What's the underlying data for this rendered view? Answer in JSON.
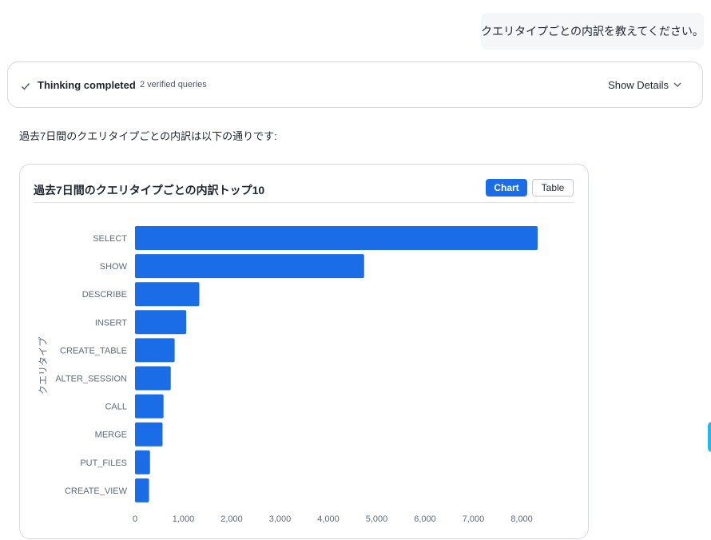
{
  "user_message": "クエリタイプごとの内訳を教えてください。",
  "thinking": {
    "label": "Thinking completed",
    "sub": "2 verified queries",
    "show_details": "Show Details"
  },
  "answer_intro": "過去7日間のクエリタイプごとの内訳は以下の通りです:",
  "card": {
    "title": "過去7日間のクエリタイプごとの内訳トップ10",
    "chart_button": "Chart",
    "table_button": "Table"
  },
  "chart_data": {
    "type": "bar",
    "orientation": "horizontal",
    "ylabel": "クエリタイプ",
    "categories": [
      "SELECT",
      "SHOW",
      "DESCRIBE",
      "INSERT",
      "CREATE_TABLE",
      "ALTER_SESSION",
      "CALL",
      "MERGE",
      "PUT_FILES",
      "CREATE_VIEW"
    ],
    "values": [
      8330,
      4740,
      1330,
      1060,
      820,
      740,
      590,
      570,
      310,
      290
    ],
    "xlim": [
      0,
      8330
    ],
    "xticks": [
      0,
      1000,
      2000,
      3000,
      4000,
      5000,
      6000,
      7000,
      8000
    ],
    "xtick_labels": [
      "0",
      "1,000",
      "2,000",
      "3,000",
      "4,000",
      "5,000",
      "6,000",
      "7,000",
      "8,000"
    ],
    "bar_color": "#1a6ce7",
    "grid": false
  }
}
